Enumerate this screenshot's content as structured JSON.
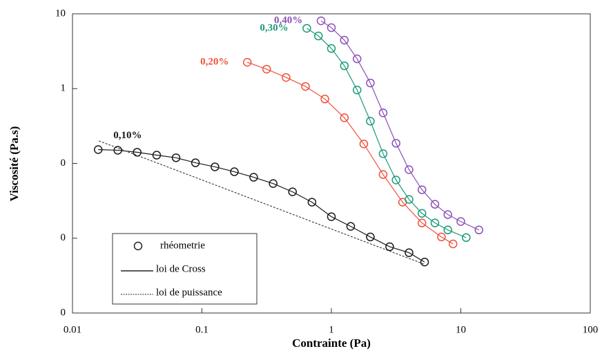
{
  "chart_data": {
    "type": "scatter",
    "xlabel": "Contrainte (Pa)",
    "ylabel": "Viscosité (Pa.s)",
    "xscale": "log",
    "yscale": "log",
    "xlim": [
      0.01,
      100
    ],
    "ylim": [
      0.001,
      10
    ],
    "xticks": [
      0.01,
      0.1,
      1,
      10,
      100
    ],
    "yticks": [
      {
        "value": 0.001,
        "label": "0"
      },
      {
        "value": 0.01,
        "label": "0"
      },
      {
        "value": 0.1,
        "label": "0"
      },
      1,
      10
    ],
    "series": [
      {
        "name": "0,10%",
        "color": "#1a1a1a",
        "x": [
          0.0158,
          0.0224,
          0.0316,
          0.0447,
          0.0631,
          0.0891,
          0.126,
          0.178,
          0.251,
          0.355,
          0.501,
          0.708,
          1,
          1.41,
          2.0,
          2.82,
          3.98,
          5.25
        ],
        "values": [
          0.153,
          0.15,
          0.141,
          0.129,
          0.119,
          0.102,
          0.09,
          0.0774,
          0.0653,
          0.0538,
          0.0417,
          0.0303,
          0.0194,
          0.0144,
          0.0104,
          0.0077,
          0.0064,
          0.0048
        ]
      },
      {
        "name": "0,20%",
        "color": "#f0503c",
        "x": [
          0.224,
          0.316,
          0.447,
          0.631,
          0.891,
          1.26,
          1.78,
          2.51,
          3.55,
          5.01,
          7.08,
          8.71
        ],
        "values": [
          2.25,
          1.82,
          1.41,
          1.07,
          0.726,
          0.408,
          0.182,
          0.0711,
          0.0303,
          0.016,
          0.0104,
          0.0084
        ]
      },
      {
        "name": "0,30%",
        "color": "#1a9a78",
        "x": [
          0.646,
          0.794,
          1,
          1.26,
          1.58,
          2.0,
          2.51,
          3.16,
          3.98,
          5.01,
          6.31,
          7.94,
          11.0
        ],
        "values": [
          6.4,
          5.06,
          3.44,
          2.02,
          0.958,
          0.367,
          0.135,
          0.06,
          0.033,
          0.0215,
          0.016,
          0.0129,
          0.0102
        ]
      },
      {
        "name": "0,40%",
        "color": "#8a4fb8",
        "x": [
          0.832,
          1,
          1.26,
          1.58,
          2.0,
          2.51,
          3.16,
          3.98,
          5.01,
          6.31,
          7.94,
          10.0,
          13.8
        ],
        "values": [
          8.07,
          6.53,
          4.45,
          2.5,
          1.19,
          0.474,
          0.186,
          0.0826,
          0.0445,
          0.0284,
          0.0207,
          0.0167,
          0.0129
        ]
      }
    ],
    "power_law": {
      "x": [
        0.016,
        5.2
      ],
      "values": [
        0.2,
        0.0045
      ]
    },
    "legend": [
      "rhéometrie",
      "loi de Cross",
      "loi de puissance"
    ]
  }
}
